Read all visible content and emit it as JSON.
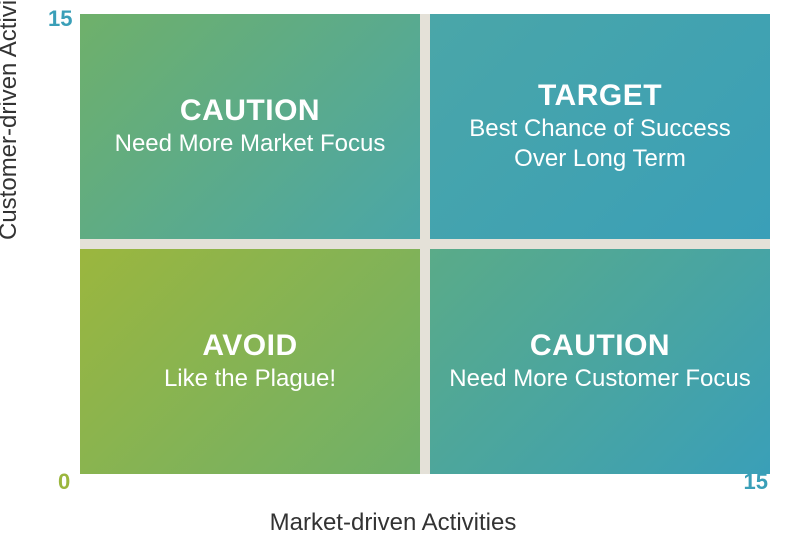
{
  "diagram": {
    "type": "quadrant-matrix",
    "y_axis": {
      "label": "Customer-driven Activities",
      "min": 0,
      "max": 15
    },
    "x_axis": {
      "label": "Market-driven Activities",
      "min": 0,
      "max": 15
    },
    "ticks": {
      "y_max": "15",
      "origin": "0",
      "x_max": "15",
      "y_max_color": "#3a9fb8",
      "origin_color": "#9bb63e",
      "x_max_color": "#3a9fb8"
    },
    "divider_color": "#e4e1d8",
    "divider_width": 10,
    "background_gradient": {
      "from": "#9bb63e",
      "to": "#3a9fb8",
      "angle_deg": 135
    },
    "text_color": "#ffffff",
    "axis_label_color": "#333333",
    "title_fontsize": 30,
    "subtitle_fontsize": 24,
    "axis_fontsize": 24,
    "tick_fontsize": 22,
    "quadrants": {
      "top_left": {
        "title": "CAUTION",
        "subtitle": "Need More Market Focus"
      },
      "top_right": {
        "title": "TARGET",
        "subtitle": "Best Chance of Success Over Long Term"
      },
      "bottom_left": {
        "title": "AVOID",
        "subtitle": "Like the Plague!"
      },
      "bottom_right": {
        "title": "CAUTION",
        "subtitle": "Need More Customer Focus"
      }
    }
  }
}
